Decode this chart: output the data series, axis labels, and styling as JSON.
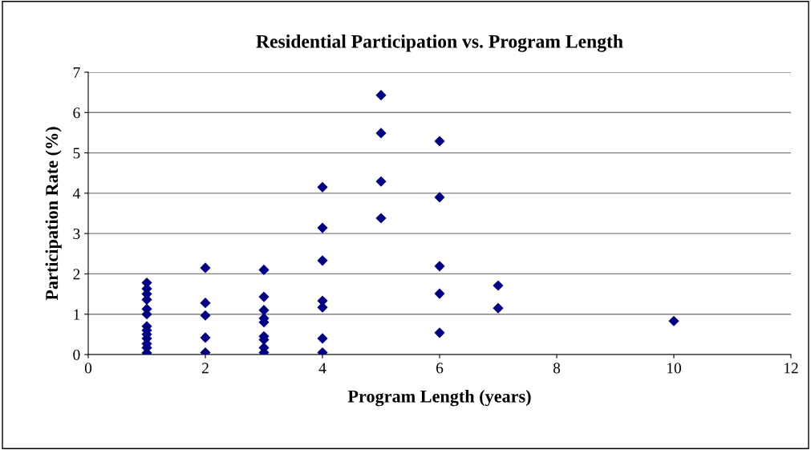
{
  "chart_data": {
    "type": "scatter",
    "title": "Residential Participation vs. Program Length",
    "xlabel": "Program Length (years)",
    "ylabel": "Participation Rate (%)",
    "x": [
      1,
      1,
      1,
      1,
      1,
      1,
      1,
      1,
      1,
      1,
      1,
      1,
      1,
      2,
      2,
      2,
      2,
      2,
      3,
      3,
      3,
      3,
      3,
      3,
      3,
      3,
      3,
      4,
      4,
      4,
      4,
      4,
      4,
      4,
      5,
      5,
      5,
      5,
      6,
      6,
      6,
      6,
      6,
      7,
      7,
      10
    ],
    "series": [
      {
        "color": "#000080",
        "values": [
          1.78,
          1.63,
          1.5,
          1.36,
          1.13,
          1.0,
          0.7,
          0.6,
          0.5,
          0.4,
          0.27,
          0.17,
          0.04,
          2.15,
          1.28,
          0.97,
          0.42,
          0.05,
          2.1,
          1.43,
          1.1,
          0.9,
          0.8,
          0.45,
          0.37,
          0.17,
          0.05,
          4.15,
          3.14,
          2.33,
          1.33,
          1.17,
          0.4,
          0.05,
          6.43,
          5.49,
          4.29,
          3.38,
          5.29,
          3.9,
          2.19,
          1.51,
          0.54,
          1.71,
          1.15,
          0.83
        ]
      }
    ],
    "xlim": [
      0,
      12
    ],
    "xticks": [
      0,
      2,
      4,
      6,
      8,
      10,
      12
    ],
    "ylim": [
      0,
      7
    ],
    "yticks": [
      0,
      1,
      2,
      3,
      4,
      5,
      6,
      7
    ],
    "grid": "y",
    "marker": "diamond",
    "legend": false
  }
}
